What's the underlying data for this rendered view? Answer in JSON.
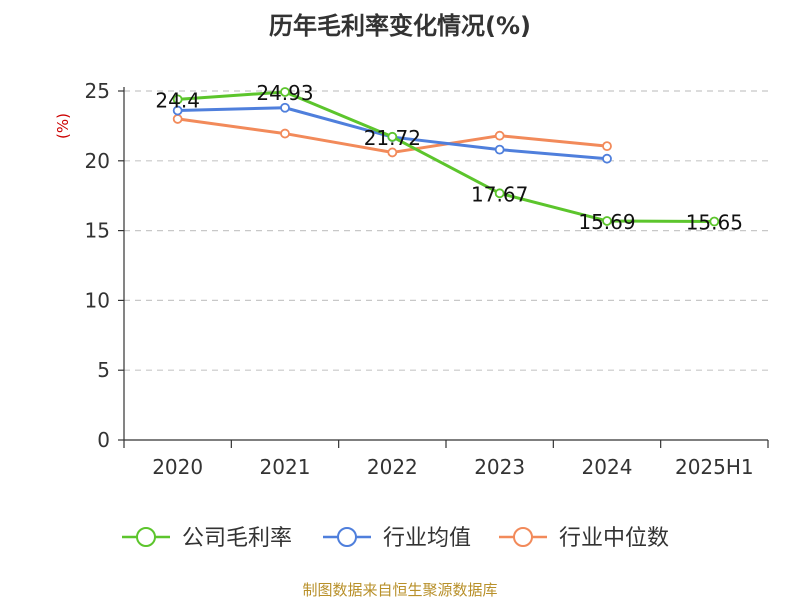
{
  "chart_data": {
    "type": "line",
    "title": "历年毛利率变化情况(%)",
    "ylabel": "(%)",
    "categories": [
      "2020",
      "2021",
      "2022",
      "2023",
      "2024",
      "2025H1"
    ],
    "ylim": [
      0,
      25
    ],
    "yticks": [
      0,
      5,
      10,
      15,
      20,
      25
    ],
    "grid": true,
    "legend_position": "bottom",
    "series": [
      {
        "name": "公司毛利率",
        "color": "#5cc52c",
        "values": [
          24.4,
          24.93,
          21.72,
          17.67,
          15.69,
          15.65
        ],
        "labels": [
          "24.4",
          "24.93",
          "21.72",
          "17.67",
          "15.69",
          "15.65"
        ]
      },
      {
        "name": "行业均值",
        "color": "#4f7fdc",
        "values": [
          23.6,
          23.8,
          21.7,
          20.8,
          20.15,
          null
        ]
      },
      {
        "name": "行业中位数",
        "color": "#f28a5a",
        "values": [
          23.0,
          21.95,
          20.6,
          21.8,
          21.05,
          null
        ]
      }
    ]
  },
  "source_note": "制图数据来自恒生聚源数据库"
}
